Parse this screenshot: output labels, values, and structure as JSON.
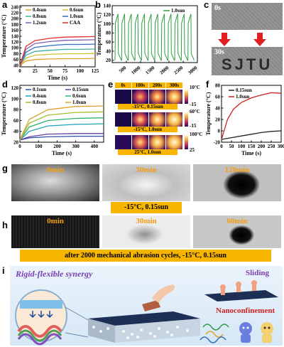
{
  "panels": {
    "a": {
      "label": "a"
    },
    "b": {
      "label": "b"
    },
    "c": {
      "label": "c",
      "top_time": "0s",
      "bottom_time": "30s",
      "text": "SJTU"
    },
    "d": {
      "label": "d"
    },
    "e": {
      "label": "e",
      "times": [
        "0s",
        "100s",
        "200s",
        "300s"
      ],
      "rows": [
        "-15°C, 0.15sun",
        "-15°C, 1.0sun",
        "25°C, 1.0sun"
      ],
      "scales": [
        [
          "10°C",
          "-15"
        ],
        [
          "60°C",
          "-15"
        ],
        [
          "100°C",
          "25"
        ]
      ]
    },
    "f": {
      "label": "f"
    },
    "g": {
      "label": "g",
      "times": [
        "0min",
        "30min",
        "120min"
      ],
      "caption": "-15°C, 0.15sun"
    },
    "h": {
      "label": "h",
      "times": [
        "0min",
        "30min",
        "60min"
      ],
      "caption": "after 2000 mechanical abrasion cycles, -15°C, 0.15sun"
    },
    "i": {
      "label": "i",
      "title": "Rigid-flexible synergy",
      "sliding": "Sliding",
      "nano": "Nanoconfinement"
    }
  },
  "chart_data": [
    {
      "id": "a",
      "type": "line",
      "xlabel": "Time (s)",
      "ylabel": "Temperature (°C)",
      "xlim": [
        0,
        125
      ],
      "ylim": [
        35,
        245
      ],
      "xticks": [
        0,
        25,
        50,
        75,
        100,
        125
      ],
      "yticks": [
        40,
        60,
        80,
        100,
        120,
        140,
        160,
        180,
        200,
        220,
        240
      ],
      "legend": "top",
      "series": [
        {
          "name": "0.4sun",
          "color": "#e0a030",
          "values": [
            [
              0,
              40
            ],
            [
              10,
              55
            ],
            [
              25,
              60
            ],
            [
              50,
              62
            ],
            [
              75,
              63
            ],
            [
              100,
              63
            ],
            [
              125,
              64
            ]
          ]
        },
        {
          "name": "0.6sun",
          "color": "#d0c030",
          "values": [
            [
              0,
              40
            ],
            [
              10,
              65
            ],
            [
              25,
              75
            ],
            [
              50,
              78
            ],
            [
              75,
              80
            ],
            [
              100,
              80
            ],
            [
              125,
              81
            ]
          ]
        },
        {
          "name": "0.8sun",
          "color": "#40b0a0",
          "values": [
            [
              0,
              40
            ],
            [
              10,
              75
            ],
            [
              25,
              88
            ],
            [
              50,
              92
            ],
            [
              75,
              95
            ],
            [
              100,
              95
            ],
            [
              125,
              96
            ]
          ]
        },
        {
          "name": "1.0sun",
          "color": "#3070c0",
          "values": [
            [
              0,
              40
            ],
            [
              10,
              85
            ],
            [
              25,
              102
            ],
            [
              50,
              108
            ],
            [
              75,
              112
            ],
            [
              100,
              112
            ],
            [
              125,
              113
            ]
          ]
        },
        {
          "name": "1.2sun",
          "color": "#8060b0",
          "values": [
            [
              0,
              40
            ],
            [
              10,
              95
            ],
            [
              25,
              115
            ],
            [
              50,
              122
            ],
            [
              75,
              126
            ],
            [
              100,
              127
            ],
            [
              125,
              128
            ]
          ]
        },
        {
          "name": "CAA",
          "color": "#e03030",
          "values": [
            [
              0,
              40
            ],
            [
              10,
              105
            ],
            [
              25,
              125
            ],
            [
              50,
              133
            ],
            [
              75,
              137
            ],
            [
              100,
              138
            ],
            [
              125,
              139
            ]
          ]
        }
      ]
    },
    {
      "id": "b",
      "type": "line",
      "xlabel": "",
      "ylabel": "Temperature (°C)",
      "xlim": [
        0,
        3000
      ],
      "ylim": [
        15,
        140
      ],
      "xticks": [
        500,
        1000,
        1500,
        2000,
        2500,
        3000
      ],
      "yticks": [
        20,
        40,
        60,
        80,
        100,
        120,
        140
      ],
      "legend": "top-right",
      "cycles": 12,
      "low": 20,
      "high": 122,
      "series": [
        {
          "name": "1.0sun",
          "color": "#2e9e3e"
        }
      ]
    },
    {
      "id": "d",
      "type": "line",
      "xlabel": "Time (s)",
      "ylabel": "Temperature (°C)",
      "xlim": [
        0,
        450
      ],
      "ylim": [
        20,
        125
      ],
      "xticks": [
        0,
        100,
        200,
        300,
        400
      ],
      "yticks": [
        20,
        40,
        60,
        80,
        100,
        120
      ],
      "legend": "top",
      "series": [
        {
          "name": "0.1sun",
          "color": "#3050b0",
          "values": [
            [
              0,
              24
            ],
            [
              50,
              28
            ],
            [
              150,
              30
            ],
            [
              300,
              31
            ],
            [
              450,
              31
            ]
          ]
        },
        {
          "name": "0.15sun",
          "color": "#6040a0",
          "values": [
            [
              0,
              24
            ],
            [
              50,
              30
            ],
            [
              150,
              35
            ],
            [
              300,
              36
            ],
            [
              450,
              36
            ]
          ]
        },
        {
          "name": "0.4sun",
          "color": "#20a0c0",
          "values": [
            [
              0,
              24
            ],
            [
              50,
              40
            ],
            [
              150,
              50
            ],
            [
              300,
              53
            ],
            [
              450,
              54
            ]
          ]
        },
        {
          "name": "0.6sun",
          "color": "#30b070",
          "values": [
            [
              0,
              24
            ],
            [
              50,
              48
            ],
            [
              150,
              60
            ],
            [
              300,
              64
            ],
            [
              450,
              65
            ]
          ]
        },
        {
          "name": "0.8sun",
          "color": "#a0c030",
          "values": [
            [
              0,
              24
            ],
            [
              50,
              55
            ],
            [
              150,
              70
            ],
            [
              300,
              75
            ],
            [
              450,
              76
            ]
          ]
        },
        {
          "name": "1.0sun",
          "color": "#e0a030",
          "values": [
            [
              0,
              24
            ],
            [
              50,
              62
            ],
            [
              150,
              80
            ],
            [
              300,
              86
            ],
            [
              450,
              87
            ]
          ]
        }
      ]
    },
    {
      "id": "f",
      "type": "line",
      "xlabel": "Time (s)",
      "ylabel": "Temperature (°C)",
      "xlim": [
        0,
        300
      ],
      "ylim": [
        -20,
        80
      ],
      "xticks": [
        0,
        50,
        100,
        150,
        200,
        250,
        300
      ],
      "yticks": [
        -20,
        0,
        20,
        40,
        60,
        80
      ],
      "legend": "top",
      "series": [
        {
          "name": "0.15sun",
          "color": "#222222",
          "values": [
            [
              0,
              -15
            ],
            [
              50,
              -12
            ],
            [
              100,
              -9
            ],
            [
              150,
              -6
            ],
            [
              200,
              -3
            ],
            [
              250,
              -1
            ],
            [
              300,
              0
            ]
          ]
        },
        {
          "name": "1.0sun",
          "color": "#d02020",
          "values": [
            [
              0,
              -15
            ],
            [
              30,
              20
            ],
            [
              60,
              38
            ],
            [
              100,
              50
            ],
            [
              150,
              58
            ],
            [
              200,
              63
            ],
            [
              250,
              67
            ],
            [
              300,
              66
            ]
          ]
        }
      ]
    }
  ]
}
